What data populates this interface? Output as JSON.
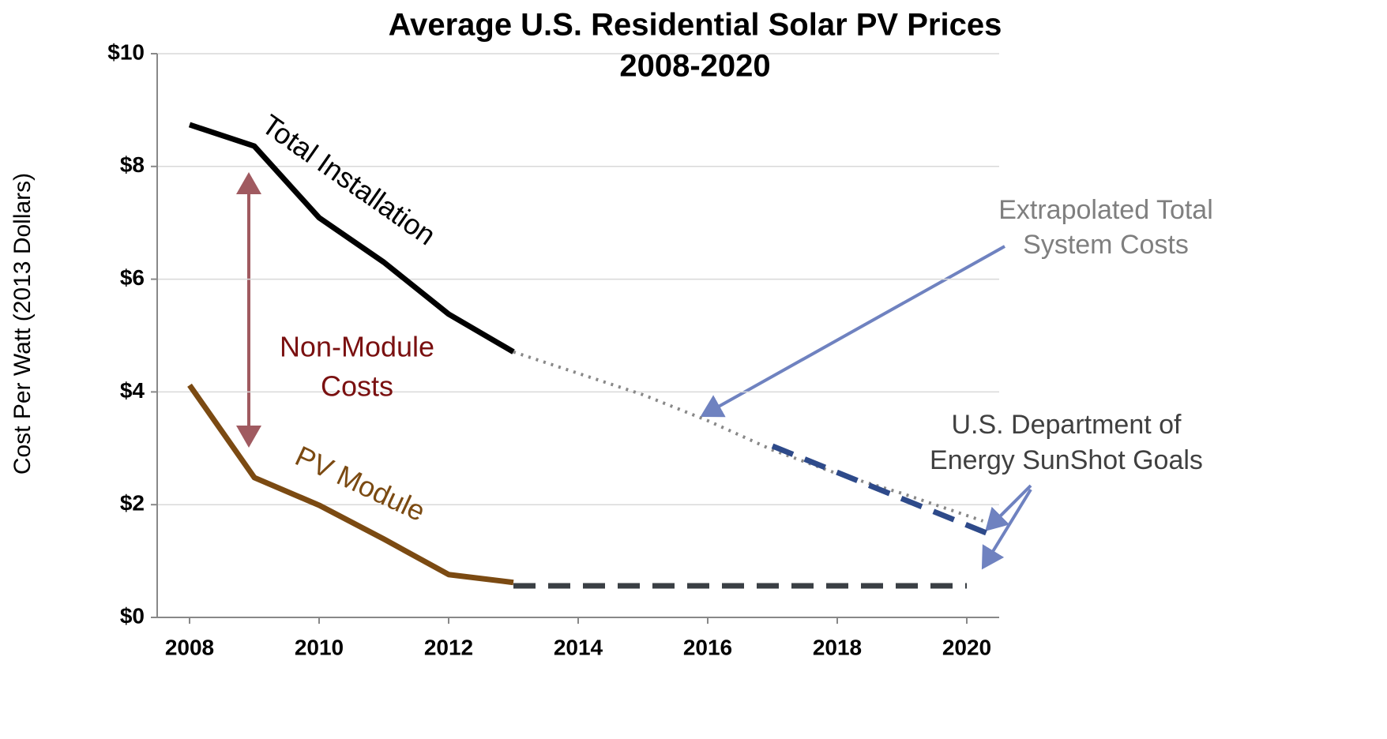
{
  "chart_data": {
    "type": "line",
    "title": "Average U.S. Residential Solar PV Prices",
    "subtitle": "2008-2020",
    "y_label": "Cost Per Watt (2013 Dollars)",
    "xlim": [
      2007.5,
      2020.5
    ],
    "xticks": [
      2008,
      2010,
      2012,
      2014,
      2016,
      2018,
      2020
    ],
    "ylim": [
      0,
      10
    ],
    "yticks": [
      {
        "value": 0,
        "label": "$0"
      },
      {
        "value": 2,
        "label": "$2"
      },
      {
        "value": 4,
        "label": "$4"
      },
      {
        "value": 6,
        "label": "$6"
      },
      {
        "value": 8,
        "label": "$8"
      },
      {
        "value": 10,
        "label": "$10"
      }
    ],
    "grid": true,
    "series": [
      {
        "name": "Total Installation",
        "color": "#000000",
        "dash": "solid",
        "x": [
          2008,
          2009,
          2010,
          2011,
          2012,
          2013
        ],
        "values": [
          8.74,
          8.36,
          7.09,
          6.3,
          5.38,
          4.71
        ]
      },
      {
        "name": "PV Module",
        "color": "#7b4a12",
        "dash": "solid",
        "x": [
          2008,
          2009,
          2010,
          2011,
          2012,
          2013
        ],
        "values": [
          4.12,
          2.48,
          1.99,
          1.39,
          0.76,
          0.62
        ]
      },
      {
        "color": "#888888",
        "dash": "dotted",
        "x": [
          2013,
          2014,
          2015,
          2016,
          2017,
          2018,
          2019,
          2020.25
        ],
        "values": [
          4.71,
          4.33,
          3.95,
          3.49,
          2.97,
          2.55,
          2.2,
          1.71
        ]
      },
      {
        "color": "#2e4a8a",
        "dash": "dashed",
        "x": [
          2017,
          2020.3
        ],
        "values": [
          3.04,
          1.5
        ]
      },
      {
        "color": "#3a3f44",
        "dash": "dashed",
        "x": [
          2013,
          2020
        ],
        "values": [
          0.56,
          0.56
        ]
      }
    ],
    "annotations": [
      {
        "lines": [
          "Total Installation"
        ],
        "color": "#000000"
      },
      {
        "lines": [
          "PV Module"
        ],
        "color": "#7b4a12"
      },
      {
        "lines": [
          "Non-Module",
          "Costs"
        ],
        "color": "#7a1010"
      },
      {
        "lines": [
          "Extrapolated Total",
          "System Costs"
        ],
        "color": "#7f7f7f"
      },
      {
        "lines": [
          "U.S. Department of",
          "Energy SunShot Goals"
        ],
        "color": "#404040"
      }
    ]
  }
}
